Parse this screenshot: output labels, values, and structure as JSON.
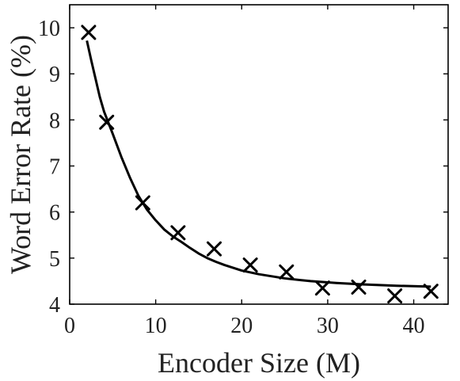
{
  "chart_data": {
    "type": "line",
    "xlabel": "Encoder Size (M)",
    "ylabel": "Word Error Rate (%)",
    "xlim": [
      0,
      44
    ],
    "ylim": [
      4,
      10.5
    ],
    "xticks": [
      0,
      10,
      20,
      30,
      40
    ],
    "yticks": [
      4,
      5,
      6,
      7,
      8,
      9,
      10
    ],
    "grid": false,
    "legend": "none",
    "series": [
      {
        "style": "markers",
        "marker": "x",
        "color": "#000000",
        "x": [
          2.2,
          4.3,
          8.5,
          12.6,
          16.8,
          21.0,
          25.2,
          29.4,
          33.6,
          37.8,
          42.0
        ],
        "y": [
          9.9,
          7.95,
          6.2,
          5.55,
          5.2,
          4.85,
          4.7,
          4.35,
          4.37,
          4.18,
          4.28
        ]
      },
      {
        "style": "line",
        "color": "#000000",
        "x": [
          2.0,
          2.5,
          3.0,
          3.5,
          4.0,
          5.0,
          6.0,
          7.0,
          8.0,
          9.0,
          10.0,
          11.0,
          12.0,
          13.0,
          14.0,
          15.0,
          16.0,
          17.0,
          18.0,
          20.0,
          22.0,
          25.0,
          28.0,
          31.0,
          34.0,
          38.0,
          42.0
        ],
        "y": [
          9.72,
          9.3,
          8.9,
          8.5,
          8.18,
          7.7,
          7.2,
          6.75,
          6.35,
          6.05,
          5.82,
          5.62,
          5.47,
          5.35,
          5.22,
          5.1,
          5.0,
          4.92,
          4.85,
          4.73,
          4.65,
          4.56,
          4.5,
          4.46,
          4.43,
          4.4,
          4.38
        ]
      }
    ]
  }
}
